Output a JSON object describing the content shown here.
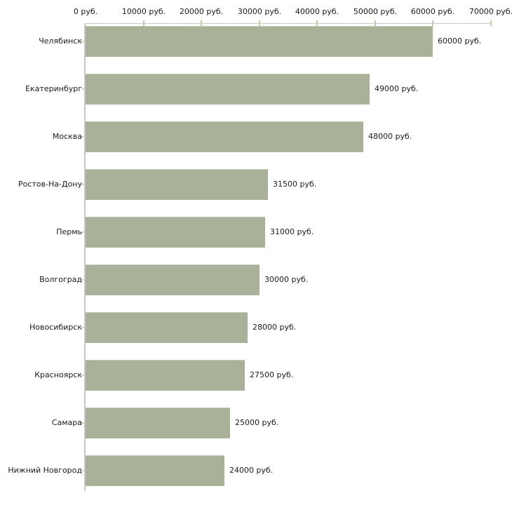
{
  "chart_data": {
    "type": "bar",
    "orientation": "horizontal",
    "categories": [
      "Челябинск",
      "Екатеринбург",
      "Москва",
      "Ростов-На-Дону",
      "Пермь",
      "Волгоград",
      "Новосибирск",
      "Красноярск",
      "Самара",
      "Нижний Новгород"
    ],
    "values": [
      60000,
      49000,
      48000,
      31500,
      31000,
      30000,
      28000,
      27500,
      25000,
      24000
    ],
    "value_labels": [
      "60000 руб.",
      "49000 руб.",
      "48000 руб.",
      "31500 руб.",
      "31000 руб.",
      "30000 руб.",
      "28000 руб.",
      "27500 руб.",
      "25000 руб.",
      "24000 руб."
    ],
    "unit": "руб.",
    "x_ticks": [
      0,
      10000,
      20000,
      30000,
      40000,
      50000,
      60000,
      70000
    ],
    "x_tick_labels": [
      "0 руб.",
      "10000 руб.",
      "20000 руб.",
      "30000 руб.",
      "40000 руб.",
      "50000 руб.",
      "60000 руб.",
      "70000 руб."
    ],
    "xlim": [
      0,
      70000
    ],
    "grid": "off",
    "legend": "none",
    "axis_position": "top",
    "colors": {
      "bar": "#aab199",
      "axis_line": "#c9c9c9",
      "y_axis_line": "#c6c6c6",
      "x_tick": "#c9c9a1",
      "row_tick": "#d5d5bd",
      "text": "#1a1a1a",
      "background": "#ffffff"
    }
  }
}
